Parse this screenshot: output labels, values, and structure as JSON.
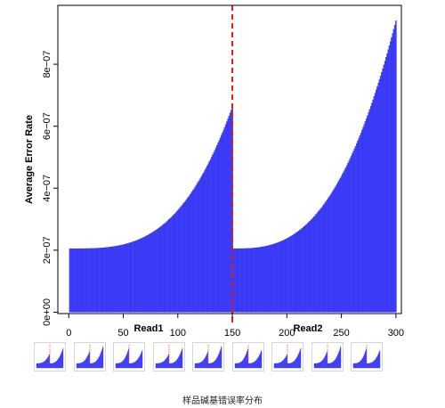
{
  "chart_data": {
    "type": "bar",
    "xlabel_left": "Read1",
    "xlabel_right": "Read2",
    "ylabel": "Average Error Rate",
    "xlim": [
      -10,
      305
    ],
    "ylim": [
      -4.5e-09,
      9.9e-07
    ],
    "divider_x": 150,
    "x_ticks": [
      "0",
      "50",
      "100",
      "150",
      "200",
      "250",
      "300"
    ],
    "x_tick_values": [
      0,
      50,
      100,
      150,
      200,
      250,
      300
    ],
    "y_ticks": [
      "0e+00",
      "2e−07",
      "4e−07",
      "6e−07",
      "8e−07"
    ],
    "y_tick_values": [
      0,
      2e-07,
      4e-07,
      6e-07,
      8e-07
    ],
    "colors": {
      "bar_fill": "#4040ff",
      "bar_stroke": "#2a2ae0",
      "divider": "#e01a1a"
    },
    "read1": {
      "x_start": 1,
      "x_end": 150,
      "start": 2.05e-07,
      "end": 6.62e-07,
      "curve_exp": 3.2
    },
    "read2": {
      "x_start": 151,
      "x_end": 300,
      "start": 2.05e-07,
      "end": 9.4e-07,
      "curve_exp": 2.8
    }
  },
  "thumbnails": {
    "count": 9,
    "caption": "样品碱基错误率分布"
  }
}
